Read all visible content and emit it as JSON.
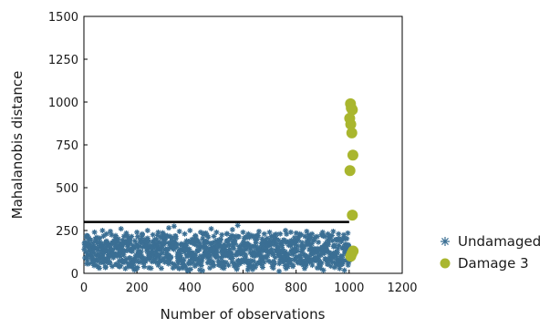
{
  "chart_data": {
    "type": "scatter",
    "title": "",
    "xlabel": "Number of observations",
    "ylabel": "Mahalanobis distance",
    "xlim": [
      0,
      1200
    ],
    "ylim": [
      0,
      1500
    ],
    "xticks": [
      0,
      200,
      400,
      600,
      800,
      1000,
      1200
    ],
    "yticks": [
      0,
      250,
      500,
      750,
      1000,
      1250,
      1500
    ],
    "xtick_labels": [
      "0",
      "200",
      "400",
      "600",
      "800",
      "1000",
      "1200"
    ],
    "ytick_labels": [
      "0",
      "250",
      "500",
      "750",
      "1000",
      "1250",
      "1500"
    ],
    "grid": false,
    "legend_position": "right",
    "threshold": {
      "x_start": 0,
      "x_end": 1000,
      "y": 300,
      "color": "#000000"
    },
    "series": [
      {
        "name": "Undamaged",
        "marker": "asterisk",
        "color": "#3b6f94",
        "x_range": [
          1,
          1000
        ],
        "y_range": [
          0,
          290
        ],
        "points": [
          [
            10,
            220
          ],
          [
            15,
            180
          ],
          [
            25,
            195
          ],
          [
            40,
            240
          ],
          [
            55,
            205
          ],
          [
            70,
            250
          ],
          [
            85,
            230
          ],
          [
            100,
            245
          ],
          [
            120,
            220
          ],
          [
            140,
            260
          ],
          [
            160,
            235
          ],
          [
            180,
            215
          ],
          [
            200,
            240
          ],
          [
            220,
            230
          ],
          [
            240,
            250
          ],
          [
            260,
            225
          ],
          [
            280,
            240
          ],
          [
            300,
            230
          ],
          [
            320,
            265
          ],
          [
            340,
            275
          ],
          [
            360,
            245
          ],
          [
            380,
            230
          ],
          [
            400,
            250
          ],
          [
            420,
            220
          ],
          [
            440,
            240
          ],
          [
            460,
            235
          ],
          [
            480,
            260
          ],
          [
            500,
            240
          ],
          [
            520,
            225
          ],
          [
            540,
            230
          ],
          [
            560,
            255
          ],
          [
            580,
            280
          ],
          [
            600,
            240
          ],
          [
            620,
            230
          ],
          [
            640,
            215
          ],
          [
            660,
            245
          ],
          [
            680,
            230
          ],
          [
            700,
            240
          ],
          [
            720,
            225
          ],
          [
            740,
            230
          ],
          [
            760,
            250
          ],
          [
            780,
            240
          ],
          [
            800,
            235
          ],
          [
            820,
            225
          ],
          [
            840,
            245
          ],
          [
            860,
            230
          ],
          [
            880,
            215
          ],
          [
            900,
            240
          ],
          [
            920,
            230
          ],
          [
            940,
            245
          ],
          [
            960,
            230
          ],
          [
            980,
            225
          ],
          [
            995,
            235
          ]
        ]
      },
      {
        "name": "Damage 3",
        "marker": "circle",
        "color": "#a9b62e",
        "points": [
          [
            1005,
            990
          ],
          [
            1008,
            965
          ],
          [
            1012,
            955
          ],
          [
            1002,
            905
          ],
          [
            1006,
            870
          ],
          [
            1010,
            820
          ],
          [
            1014,
            690
          ],
          [
            1003,
            600
          ],
          [
            1012,
            340
          ],
          [
            1015,
            130
          ],
          [
            1010,
            115
          ],
          [
            1006,
            100
          ]
        ]
      }
    ]
  }
}
